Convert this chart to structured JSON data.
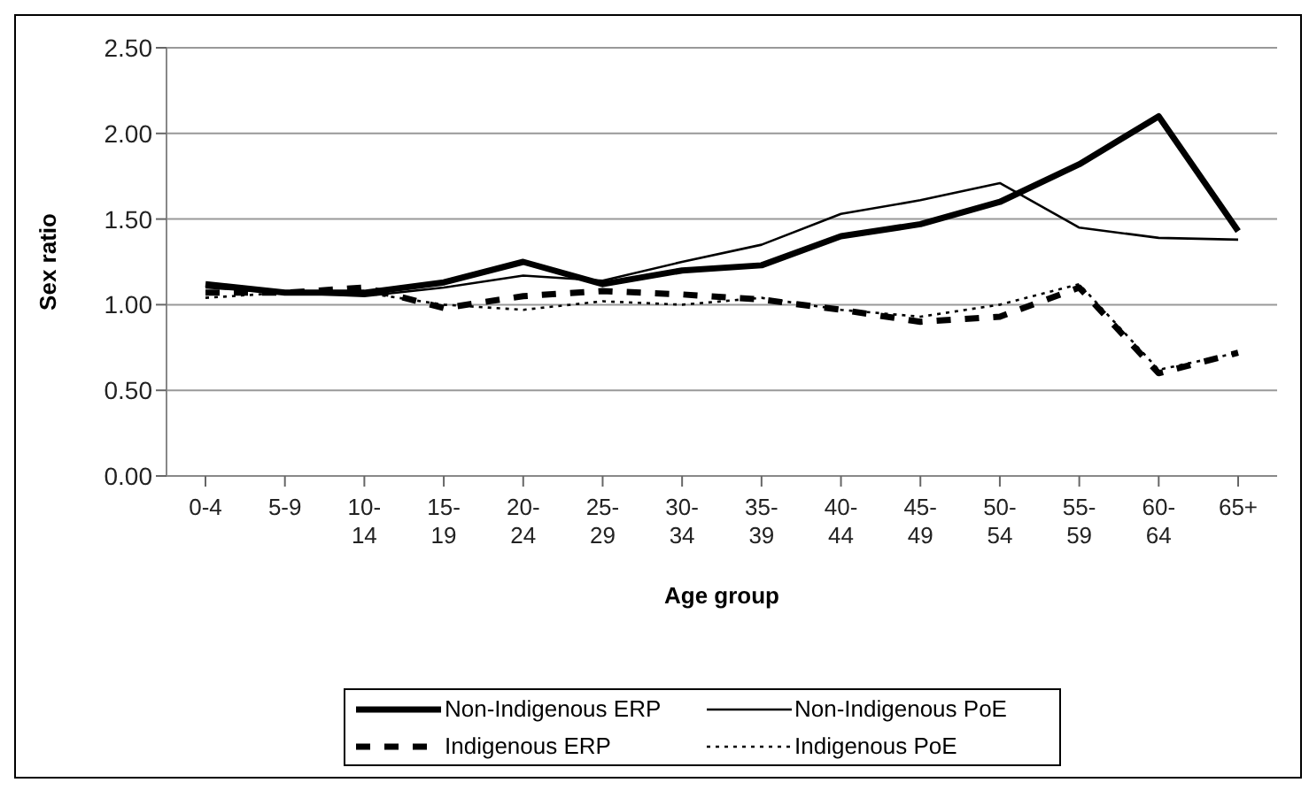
{
  "chart_data": {
    "type": "line",
    "xlabel": "Age group",
    "ylabel": "Sex ratio",
    "categories": [
      "0-4",
      "5-9",
      "10-14",
      "15-19",
      "20-24",
      "25-29",
      "30-34",
      "35-39",
      "40-44",
      "45-49",
      "50-54",
      "55-59",
      "60-64",
      "65+"
    ],
    "series": [
      {
        "name": "Non-Indigenous ERP",
        "color": "#000000",
        "line_style": "solid",
        "values": [
          1.12,
          1.07,
          1.07,
          1.13,
          1.25,
          1.12,
          1.2,
          1.23,
          1.4,
          1.47,
          1.6,
          1.82,
          2.1,
          1.43
        ]
      },
      {
        "name": "Non-Indigenous PoE",
        "color": "#000000",
        "line_style": "solid",
        "values": [
          1.1,
          1.07,
          1.05,
          1.1,
          1.17,
          1.14,
          1.25,
          1.35,
          1.53,
          1.61,
          1.71,
          1.45,
          1.39,
          1.38
        ]
      },
      {
        "name": "Indigenous ERP",
        "color": "#000000",
        "line_style": "dashed",
        "values": [
          1.07,
          1.07,
          1.1,
          0.98,
          1.05,
          1.08,
          1.06,
          1.03,
          0.97,
          0.9,
          0.93,
          1.1,
          0.6,
          0.72
        ]
      },
      {
        "name": "Indigenous PoE",
        "color": "#000000",
        "line_style": "dotted",
        "values": [
          1.04,
          1.07,
          1.07,
          1.0,
          0.97,
          1.02,
          1.0,
          1.04,
          0.97,
          0.93,
          1.0,
          1.12,
          0.62,
          0.72
        ]
      }
    ],
    "ylim": [
      0,
      2.5
    ],
    "yticks": [
      {
        "value": 0,
        "label": "0.00"
      },
      {
        "value": 0.5,
        "label": "0.50"
      },
      {
        "value": 1,
        "label": "1.00"
      },
      {
        "value": 1.5,
        "label": "1.50"
      },
      {
        "value": 2,
        "label": "2.00"
      },
      {
        "value": 2.5,
        "label": "2.50"
      }
    ],
    "grid": "y",
    "legend": "bottom",
    "marker": "none"
  }
}
